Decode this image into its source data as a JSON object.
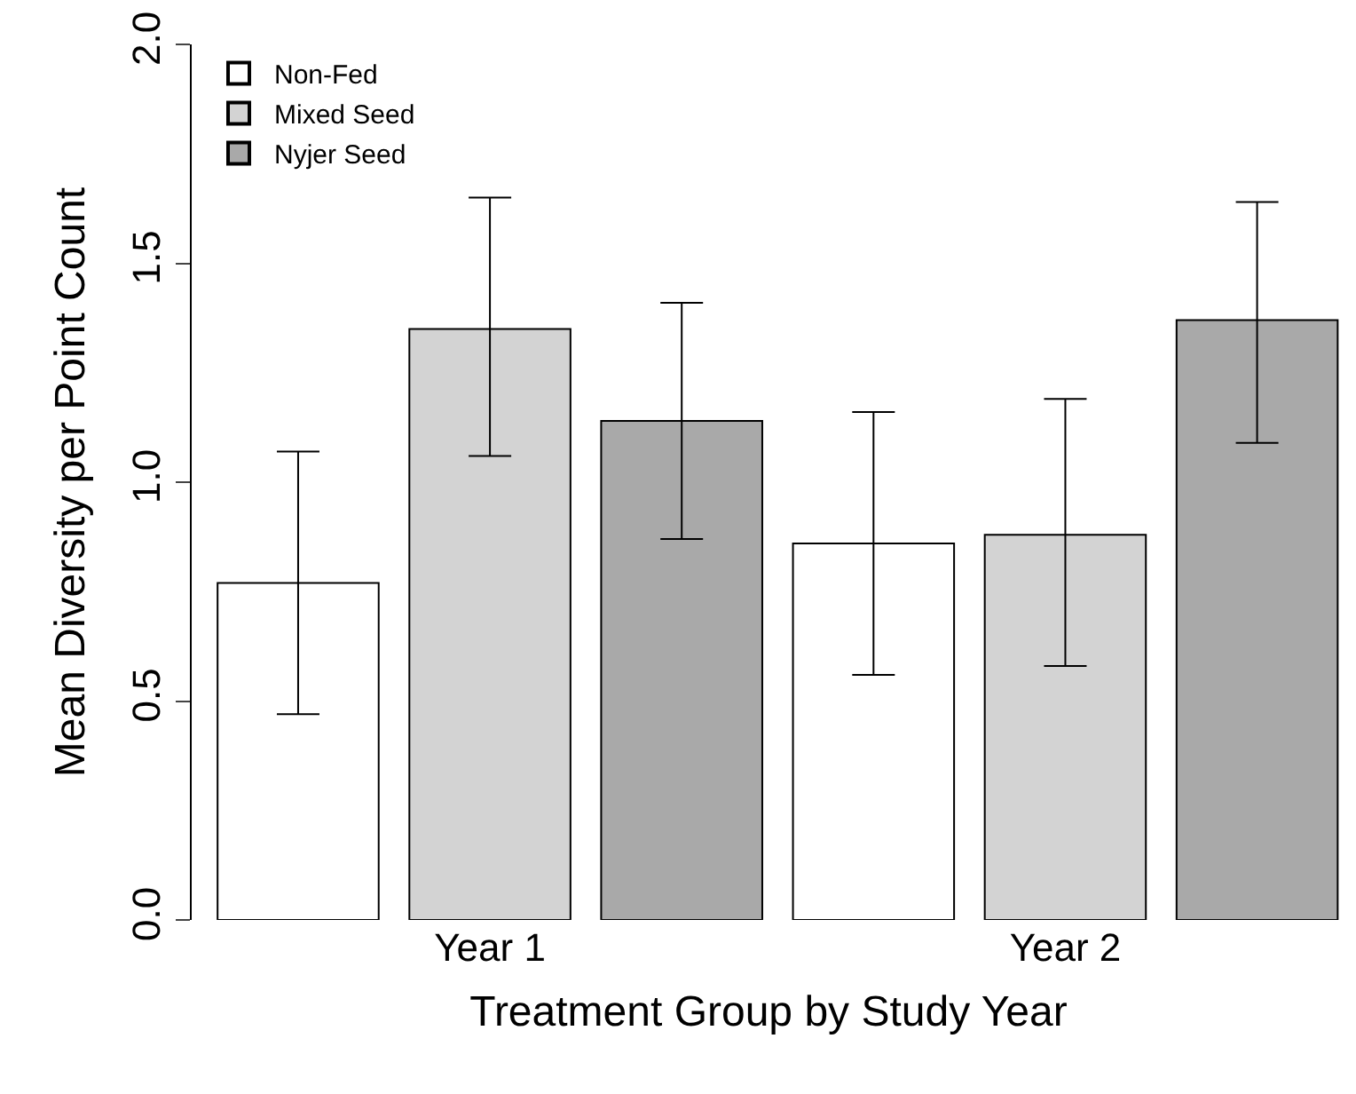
{
  "chart_data": {
    "type": "bar",
    "xlabel": "Treatment Group by Study Year",
    "ylabel": "Mean Diversity per Point Count",
    "categories": [
      null,
      "Year 1",
      null,
      null,
      "Year 2",
      null
    ],
    "series": [
      {
        "name": "Non-Fed",
        "color": "#ffffff",
        "values": [
          0.77,
          null,
          null,
          0.86,
          null,
          null
        ],
        "errors": [
          [
            0.47,
            1.07
          ],
          null,
          null,
          [
            0.56,
            1.16
          ],
          null,
          null
        ]
      },
      {
        "name": "Mixed Seed",
        "color": "#d3d3d3",
        "values": [
          null,
          1.35,
          null,
          null,
          0.88,
          null
        ],
        "errors": [
          null,
          [
            1.06,
            1.65
          ],
          null,
          null,
          [
            0.58,
            1.19
          ],
          null
        ]
      },
      {
        "name": "Nyjer Seed",
        "color": "#a9a9a9",
        "values": [
          null,
          null,
          1.14,
          null,
          null,
          1.37
        ],
        "errors": [
          null,
          null,
          [
            0.87,
            1.41
          ],
          null,
          null,
          [
            1.09,
            1.64
          ]
        ]
      }
    ],
    "ylim": [
      0,
      2
    ],
    "yticks": [
      {
        "value": 0,
        "label": "0.0"
      },
      {
        "value": 0.5,
        "label": "0.5"
      },
      {
        "value": 1,
        "label": "1.0"
      },
      {
        "value": 1.5,
        "label": "1.5"
      },
      {
        "value": 2,
        "label": "2.0"
      }
    ],
    "legend": "top left"
  }
}
